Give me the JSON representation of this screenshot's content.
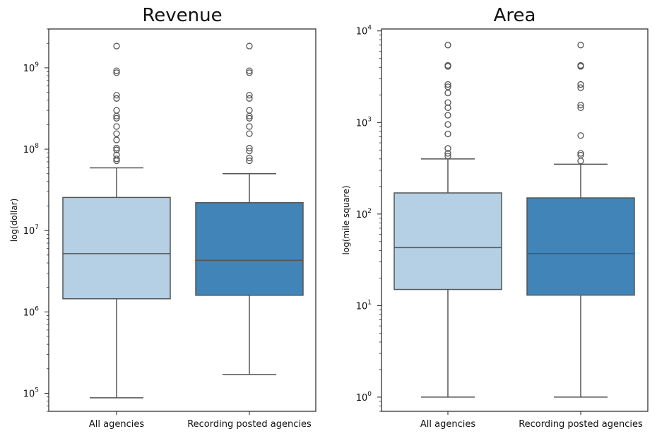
{
  "chart_data": [
    {
      "type": "boxplot",
      "title": "Revenue",
      "ylabel": "log(dollar)",
      "yscale": "log",
      "ylim": [
        60000,
        3000000000
      ],
      "yticks": [
        {
          "value": 100000,
          "base": "10",
          "exp": "5"
        },
        {
          "value": 1000000,
          "base": "10",
          "exp": "6"
        },
        {
          "value": 10000000,
          "base": "10",
          "exp": "7"
        },
        {
          "value": 100000000,
          "base": "10",
          "exp": "8"
        },
        {
          "value": 1000000000,
          "base": "10",
          "exp": "9"
        }
      ],
      "categories": [
        "All agencies",
        "Recording posted agencies"
      ],
      "colors": [
        "#b5cfe4",
        "#4184b8"
      ],
      "boxes": [
        {
          "whisker_low": 88000,
          "q1": 1450000,
          "median": 5200000,
          "q3": 25500000,
          "whisker_high": 59000000,
          "outliers": [
            72000000,
            76000000,
            85000000,
            98000000,
            103000000,
            130000000,
            155000000,
            190000000,
            240000000,
            255000000,
            300000000,
            420000000,
            460000000,
            870000000,
            920000000,
            1850000000
          ]
        },
        {
          "whisker_low": 170000,
          "q1": 1600000,
          "median": 4300000,
          "q3": 22000000,
          "whisker_high": 50000000,
          "outliers": [
            72000000,
            78000000,
            95000000,
            103000000,
            155000000,
            190000000,
            240000000,
            255000000,
            300000000,
            420000000,
            460000000,
            870000000,
            920000000,
            1850000000
          ]
        }
      ]
    },
    {
      "type": "boxplot",
      "title": "Area",
      "ylabel": "log(mile square)",
      "yscale": "log",
      "ylim": [
        0.7,
        10500
      ],
      "yticks": [
        {
          "value": 1,
          "base": "10",
          "exp": "0"
        },
        {
          "value": 10,
          "base": "10",
          "exp": "1"
        },
        {
          "value": 100,
          "base": "10",
          "exp": "2"
        },
        {
          "value": 1000,
          "base": "10",
          "exp": "3"
        },
        {
          "value": 10000,
          "base": "10",
          "exp": "4"
        }
      ],
      "categories": [
        "All agencies",
        "Recording posted agencies"
      ],
      "colors": [
        "#b5cfe4",
        "#4184b8"
      ],
      "boxes": [
        {
          "whisker_low": 1.0,
          "q1": 15,
          "median": 43,
          "q3": 170,
          "whisker_high": 400,
          "outliers": [
            430,
            460,
            520,
            750,
            950,
            1200,
            1450,
            1650,
            2100,
            2450,
            2600,
            4100,
            4200,
            7000
          ]
        },
        {
          "whisker_low": 1.0,
          "q1": 13,
          "median": 37,
          "q3": 150,
          "whisker_high": 350,
          "outliers": [
            380,
            440,
            460,
            720,
            1450,
            1550,
            2400,
            2600,
            4100,
            4200,
            7000
          ]
        }
      ]
    }
  ]
}
